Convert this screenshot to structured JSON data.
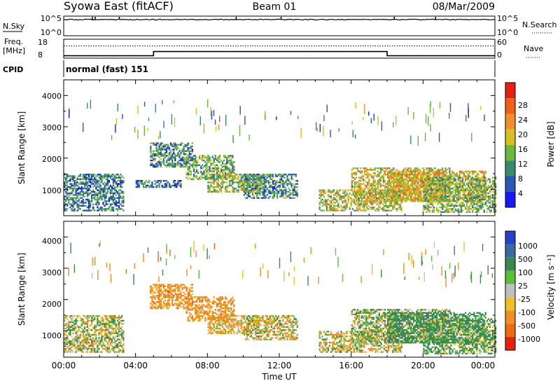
{
  "header": {
    "title": "Syowa East (fitACF)",
    "beam": "Beam 01",
    "date": "08/Mar/2009"
  },
  "nsky_panel": {
    "left_label": "N.Sky",
    "right_label": "N.Search",
    "ticks_left": [
      "10^5",
      "10^0"
    ],
    "ticks_right": [
      "10^5",
      "10^0"
    ]
  },
  "freq_panel": {
    "left_label_1": "Freq.",
    "left_label_2": "[MHz]",
    "right_label": "Nave",
    "ticks_left": [
      "18",
      "8"
    ],
    "ticks_right": [
      "60",
      "0"
    ]
  },
  "cpid_panel": {
    "label": "CPID",
    "text": "normal (fast) 151"
  },
  "power_panel": {
    "ylabel": "Slant Range [km]",
    "yticks": [
      "1000",
      "2000",
      "3000",
      "4000"
    ],
    "colorbar_label": "Power [dB]",
    "colorbar_ticks": [
      "4",
      "8",
      "12",
      "16",
      "20",
      "24",
      "28"
    ],
    "colorbar_colors": [
      "#1818f0",
      "#2a55b0",
      "#3a8a70",
      "#6ab840",
      "#d8c020",
      "#f09028",
      "#f06018",
      "#e82010"
    ]
  },
  "velocity_panel": {
    "ylabel": "Slant Range [km]",
    "yticks": [
      "1000",
      "2000",
      "3000",
      "4000"
    ],
    "colorbar_label": "Velocity [m s⁻¹]",
    "colorbar_ticks": [
      "1000",
      "500",
      "100",
      "25",
      "-25",
      "-100",
      "-500",
      "-1000"
    ],
    "colorbar_colors": [
      "#2840c8",
      "#3a6aa0",
      "#3a8a50",
      "#58c038",
      "#c0c0c0",
      "#f0c028",
      "#f09020",
      "#f06a10",
      "#e82010"
    ]
  },
  "time_axis": {
    "label": "Time UT",
    "ticks": [
      "00:00",
      "04:00",
      "08:00",
      "12:00",
      "16:00",
      "20:00",
      "00:00"
    ]
  },
  "chart_data": [
    {
      "type": "line",
      "panel": "N.Sky / N.Search",
      "x_label": "Time UT",
      "y_scale": "log",
      "ylim": [
        1,
        100000
      ],
      "description": "noise trace, nearly flat near the top of the panel"
    },
    {
      "type": "line",
      "panel": "Freq. [MHz] / Nave",
      "ylim_left": [
        8,
        18
      ],
      "ylim_right": [
        0,
        60
      ],
      "series": [
        {
          "name": "Freq.",
          "x_hours": [
            0,
            5,
            5,
            18,
            18,
            24
          ],
          "values": [
            9,
            9,
            11.5,
            11.5,
            9,
            9
          ]
        },
        {
          "name": "Nave",
          "x_hours": [
            0,
            24
          ],
          "values": [
            41,
            41
          ]
        }
      ]
    },
    {
      "type": "heatmap",
      "panel": "Power [dB]",
      "x": "time UT 00:00–24:00",
      "y": "slant range 180–4500 km",
      "zlim": [
        0,
        30
      ],
      "echo_regions": [
        {
          "t": [
            0.0,
            3.3
          ],
          "r": [
            300,
            1500
          ],
          "value": 9
        },
        {
          "t": [
            4.0,
            6.5
          ],
          "r": [
            1050,
            1300
          ],
          "value": 8
        },
        {
          "t": [
            4.8,
            7.2
          ],
          "r": [
            1700,
            2500
          ],
          "value": 10
        },
        {
          "t": [
            6.8,
            9.5
          ],
          "r": [
            1300,
            2100
          ],
          "value": 13
        },
        {
          "t": [
            8.0,
            11.0
          ],
          "r": [
            900,
            1500
          ],
          "value": 15
        },
        {
          "t": [
            10.0,
            13.0
          ],
          "r": [
            700,
            1500
          ],
          "value": 10
        },
        {
          "t": [
            14.2,
            18.8
          ],
          "r": [
            300,
            1000
          ],
          "value": 16
        },
        {
          "t": [
            16.0,
            21.5
          ],
          "r": [
            600,
            1700
          ],
          "value": 18
        },
        {
          "t": [
            18.0,
            23.5
          ],
          "r": [
            600,
            1600
          ],
          "value": 19
        },
        {
          "t": [
            20.0,
            24.0
          ],
          "r": [
            250,
            1400
          ],
          "value": 14
        }
      ]
    },
    {
      "type": "heatmap",
      "panel": "Velocity [m s-1]",
      "x": "time UT 00:00–24:00",
      "y": "slant range 180–4500 km",
      "zlim": [
        -1000,
        1000
      ],
      "echo_regions": [
        {
          "t": [
            0.0,
            3.3
          ],
          "r": [
            300,
            1500
          ],
          "value": 0
        },
        {
          "t": [
            4.8,
            7.2
          ],
          "r": [
            1700,
            2500
          ],
          "value": -300
        },
        {
          "t": [
            6.8,
            9.5
          ],
          "r": [
            1300,
            2100
          ],
          "value": -300
        },
        {
          "t": [
            8.0,
            11.0
          ],
          "r": [
            900,
            1500
          ],
          "value": -150
        },
        {
          "t": [
            10.0,
            13.0
          ],
          "r": [
            700,
            1500
          ],
          "value": -60
        },
        {
          "t": [
            14.2,
            18.8
          ],
          "r": [
            300,
            1000
          ],
          "value": -60
        },
        {
          "t": [
            16.0,
            21.5
          ],
          "r": [
            600,
            1700
          ],
          "value": 60
        },
        {
          "t": [
            18.0,
            23.5
          ],
          "r": [
            600,
            1600
          ],
          "value": 300
        },
        {
          "t": [
            20.0,
            24.0
          ],
          "r": [
            250,
            1400
          ],
          "value": 150
        }
      ]
    }
  ]
}
